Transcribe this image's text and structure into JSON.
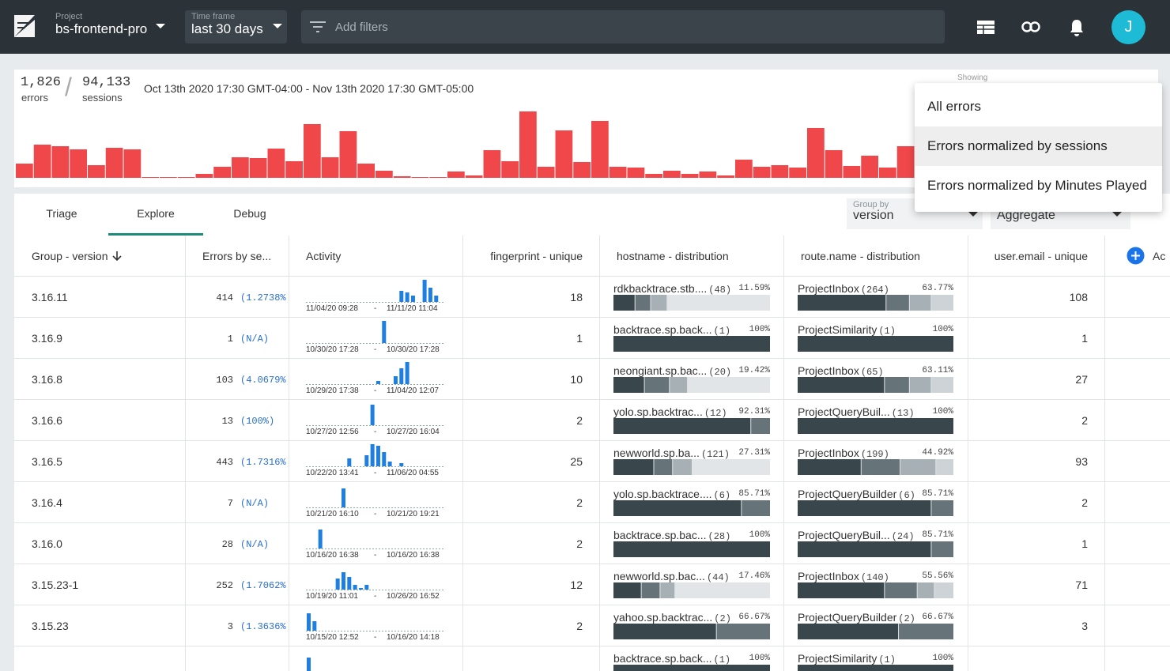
{
  "topbar": {
    "project_label": "Project",
    "project": "bs-frontend-pro",
    "timeframe_label": "Time frame",
    "timeframe": "last 30 days",
    "filters_placeholder": "Add filters",
    "avatar": "J"
  },
  "summary": {
    "errors": "1,826",
    "errors_label": "errors",
    "separator": "/",
    "sessions": "94,133",
    "sessions_label": "sessions",
    "range": "Oct 13th 2020 17:30 GMT-04:00 - Nov 13th 2020 17:30 GMT-05:00",
    "histogram": [
      18,
      42,
      40,
      36,
      16,
      38,
      36,
      1,
      1,
      1,
      5,
      14,
      26,
      25,
      37,
      21,
      68,
      26,
      59,
      18,
      9,
      2,
      1,
      1,
      8,
      3,
      35,
      21,
      84,
      14,
      60,
      20,
      72,
      14,
      13,
      5,
      9,
      5,
      8,
      3,
      23,
      14,
      16,
      13,
      63,
      35,
      15,
      28,
      13,
      40
    ]
  },
  "menu": {
    "label": "Showing",
    "options": [
      "All errors",
      "Errors normalized by sessions",
      "Errors normalized by Minutes Played"
    ],
    "selected": 1
  },
  "tabs": {
    "items": [
      "Triage",
      "Explore",
      "Debug"
    ],
    "active": 1
  },
  "group_by": {
    "label": "Group by",
    "value": "version"
  },
  "aggregate": "Aggregate",
  "table": {
    "headers": [
      "Group - version",
      "Errors by se...",
      "Activity",
      "fingerprint - unique",
      "hostname - distribution",
      "route.name - distribution",
      "user.email - unique",
      "Ac"
    ],
    "date_separator": "-",
    "rows": [
      {
        "version": "3.16.11",
        "errors": 414,
        "rate": "(1.2738%)",
        "activity": [
          0,
          0,
          0,
          0,
          0,
          0,
          0,
          0,
          0,
          0,
          0,
          0,
          0,
          0,
          0,
          0,
          14,
          12,
          8,
          0,
          28,
          18,
          8,
          0
        ],
        "start": "11/04/20 09:28",
        "end": "11/11/20 11:04",
        "fingerprint": 18,
        "hostname": {
          "name": "rdkbacktrace.stb....",
          "count": "(48)",
          "pct": "11.59%",
          "segments": [
            14,
            10,
            10
          ]
        },
        "route": {
          "name": "ProjectInbox",
          "count": "(264)",
          "pct": "63.77%",
          "segments": [
            57,
            15,
            14,
            14
          ]
        },
        "users": 108
      },
      {
        "version": "3.16.9",
        "errors": 1,
        "rate": "(N/A)",
        "activity": [
          0,
          0,
          0,
          0,
          0,
          0,
          0,
          0,
          0,
          0,
          0,
          0,
          0,
          28,
          0,
          0,
          0,
          0,
          0,
          0,
          0,
          0,
          0,
          0
        ],
        "start": "10/30/20 17:28",
        "end": "10/30/20 17:28",
        "fingerprint": 1,
        "hostname": {
          "name": "backtrace.sp.back...",
          "count": "(1)",
          "pct": "100%",
          "segments": [
            100
          ]
        },
        "route": {
          "name": "ProjectSimilarity",
          "count": "(1)",
          "pct": "100%",
          "segments": [
            100
          ]
        },
        "users": 1
      },
      {
        "version": "3.16.8",
        "errors": 103,
        "rate": "(4.0679%)",
        "activity": [
          0,
          0,
          0,
          0,
          0,
          0,
          0,
          0,
          0,
          0,
          0,
          0,
          4,
          0,
          0,
          10,
          20,
          28,
          0,
          0,
          0,
          0,
          0,
          0
        ],
        "start": "10/29/20 17:38",
        "end": "11/04/20 12:07",
        "fingerprint": 10,
        "hostname": {
          "name": "neongiant.sp.bac...",
          "count": "(20)",
          "pct": "19.42%",
          "segments": [
            20,
            16,
            11
          ]
        },
        "route": {
          "name": "ProjectInbox",
          "count": "(65)",
          "pct": "63.11%",
          "segments": [
            56,
            16,
            14,
            14
          ]
        },
        "users": 27
      },
      {
        "version": "3.16.6",
        "errors": 13,
        "rate": "(100%)",
        "activity": [
          0,
          0,
          0,
          0,
          0,
          0,
          0,
          0,
          0,
          0,
          0,
          26,
          0,
          0,
          0,
          0,
          0,
          0,
          0,
          0,
          0,
          0,
          0,
          0
        ],
        "start": "10/27/20 12:56",
        "end": "10/27/20 16:04",
        "fingerprint": 2,
        "hostname": {
          "name": "yolo.sp.backtrac...",
          "count": "(12)",
          "pct": "92.31%",
          "segments": [
            88,
            12
          ]
        },
        "route": {
          "name": "ProjectQueryBuil...",
          "count": "(13)",
          "pct": "100%",
          "segments": [
            100
          ]
        },
        "users": 2
      },
      {
        "version": "3.16.5",
        "errors": 443,
        "rate": "(1.7316%)",
        "activity": [
          0,
          0,
          0,
          0,
          0,
          0,
          0,
          10,
          0,
          0,
          14,
          28,
          26,
          18,
          6,
          0,
          4,
          0,
          0,
          0,
          0,
          0,
          0,
          0
        ],
        "start": "10/22/20 13:41",
        "end": "11/06/20 04:55",
        "fingerprint": 25,
        "hostname": {
          "name": "newworld.sp.ba...",
          "count": "(121)",
          "pct": "27.31%",
          "segments": [
            26,
            12,
            12
          ]
        },
        "route": {
          "name": "ProjectInbox",
          "count": "(199)",
          "pct": "44.92%",
          "segments": [
            41,
            25,
            23,
            11
          ]
        },
        "users": 93
      },
      {
        "version": "3.16.4",
        "errors": 7,
        "rate": "(N/A)",
        "activity": [
          0,
          0,
          0,
          0,
          0,
          0,
          24,
          0,
          0,
          0,
          0,
          0,
          0,
          0,
          0,
          0,
          0,
          0,
          0,
          0,
          0,
          0,
          0,
          0
        ],
        "start": "10/21/20 16:10",
        "end": "10/21/20 19:21",
        "fingerprint": 2,
        "hostname": {
          "name": "yolo.sp.backtrace....",
          "count": "(6)",
          "pct": "85.71%",
          "segments": [
            82,
            18
          ]
        },
        "route": {
          "name": "ProjectQueryBuilder",
          "count": "(6)",
          "pct": "85.71%",
          "segments": [
            86,
            14
          ]
        },
        "users": 2
      },
      {
        "version": "3.16.0",
        "errors": 28,
        "rate": "(N/A)",
        "activity": [
          0,
          0,
          24,
          0,
          0,
          0,
          0,
          0,
          0,
          0,
          0,
          0,
          0,
          0,
          0,
          0,
          0,
          0,
          0,
          0,
          0,
          0,
          0,
          0
        ],
        "start": "10/16/20 16:38",
        "end": "10/16/20 16:38",
        "fingerprint": 2,
        "hostname": {
          "name": "backtrace.sp.bac...",
          "count": "(28)",
          "pct": "100%",
          "segments": [
            100
          ]
        },
        "route": {
          "name": "ProjectQueryBuil...",
          "count": "(24)",
          "pct": "85.71%",
          "segments": [
            86,
            14
          ]
        },
        "users": 1
      },
      {
        "version": "3.15.23-1",
        "errors": 252,
        "rate": "(1.7062%)",
        "activity": [
          0,
          0,
          0,
          0,
          0,
          14,
          22,
          16,
          6,
          2,
          6,
          0,
          0,
          0,
          0,
          0,
          0,
          0,
          0,
          0,
          0,
          0,
          0,
          0
        ],
        "start": "10/19/20 11:01",
        "end": "10/26/20 16:52",
        "fingerprint": 12,
        "hostname": {
          "name": "newworld.sp.bac...",
          "count": "(44)",
          "pct": "17.46%",
          "segments": [
            18,
            12,
            9
          ]
        },
        "route": {
          "name": "ProjectInbox",
          "count": "(140)",
          "pct": "55.56%",
          "segments": [
            56,
            21,
            11,
            12
          ]
        },
        "users": 71
      },
      {
        "version": "3.15.23",
        "errors": 3,
        "rate": "(1.3636%)",
        "activity": [
          22,
          12,
          0,
          0,
          0,
          0,
          0,
          0,
          0,
          0,
          0,
          0,
          0,
          0,
          0,
          0,
          0,
          0,
          0,
          0,
          0,
          0,
          0,
          0
        ],
        "start": "10/15/20 12:52",
        "end": "10/16/20 14:18",
        "fingerprint": 2,
        "hostname": {
          "name": "yahoo.sp.backtrac...",
          "count": "(2)",
          "pct": "66.67%",
          "segments": [
            66,
            34
          ]
        },
        "route": {
          "name": "ProjectQueryBuilder",
          "count": "(2)",
          "pct": "66.67%",
          "segments": [
            65,
            35
          ]
        },
        "users": 3
      },
      {
        "activity": [
          18,
          0,
          0,
          0,
          0,
          0,
          0,
          0,
          0,
          0,
          0,
          0,
          0,
          0,
          0,
          0,
          0,
          0,
          0,
          0,
          0,
          0,
          0,
          0
        ],
        "hostname": {
          "name": "backtrace.sp.back...",
          "count": "(1)",
          "pct": "100%",
          "segments": [
            100
          ]
        },
        "route": {
          "name": "ProjectSimilarity",
          "count": "(1)",
          "pct": "100%",
          "segments": [
            100
          ]
        }
      }
    ]
  }
}
